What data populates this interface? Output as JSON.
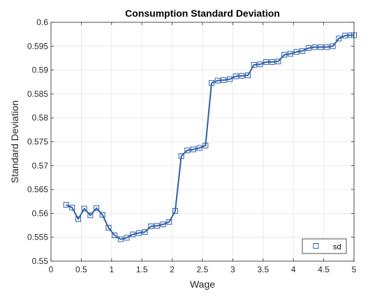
{
  "chart_data": {
    "type": "line",
    "title": "Consumption Standard Deviation",
    "xlabel": "Wage",
    "ylabel": "Standard Deviation",
    "xlim": [
      0,
      5
    ],
    "ylim": [
      0.55,
      0.6
    ],
    "xticks": [
      "0",
      "0.5",
      "1",
      "1.5",
      "2",
      "2.5",
      "3",
      "3.5",
      "4",
      "4.5",
      "5"
    ],
    "yticks": [
      "0.55",
      "0.555",
      "0.56",
      "0.565",
      "0.57",
      "0.575",
      "0.58",
      "0.585",
      "0.59",
      "0.595",
      "0.6"
    ],
    "grid": true,
    "legend": "bottom-right",
    "colors": {
      "line": "#2e5fa8",
      "marker": "#2e5fa8"
    },
    "series": [
      {
        "name": "sd",
        "x": [
          0.25,
          0.35,
          0.45,
          0.55,
          0.65,
          0.75,
          0.85,
          0.95,
          1.05,
          1.15,
          1.25,
          1.35,
          1.45,
          1.55,
          1.65,
          1.75,
          1.85,
          1.95,
          2.05,
          2.15,
          2.25,
          2.35,
          2.45,
          2.55,
          2.65,
          2.75,
          2.85,
          2.95,
          3.05,
          3.15,
          3.25,
          3.35,
          3.45,
          3.55,
          3.65,
          3.75,
          3.85,
          3.95,
          4.05,
          4.15,
          4.25,
          4.35,
          4.45,
          4.55,
          4.65,
          4.75,
          4.85,
          4.95,
          5.0
        ],
        "values": [
          0.5618,
          0.5612,
          0.5588,
          0.561,
          0.5596,
          0.5611,
          0.5597,
          0.557,
          0.5554,
          0.5546,
          0.5549,
          0.5556,
          0.5559,
          0.5561,
          0.5573,
          0.5574,
          0.5577,
          0.5582,
          0.5605,
          0.572,
          0.5732,
          0.5734,
          0.5737,
          0.5742,
          0.5873,
          0.5878,
          0.5879,
          0.5881,
          0.5887,
          0.5888,
          0.5889,
          0.5911,
          0.5912,
          0.5917,
          0.5917,
          0.5918,
          0.5932,
          0.5934,
          0.5938,
          0.594,
          0.5946,
          0.5948,
          0.5948,
          0.5948,
          0.595,
          0.5966,
          0.5972,
          0.5973,
          0.5973
        ]
      }
    ]
  }
}
